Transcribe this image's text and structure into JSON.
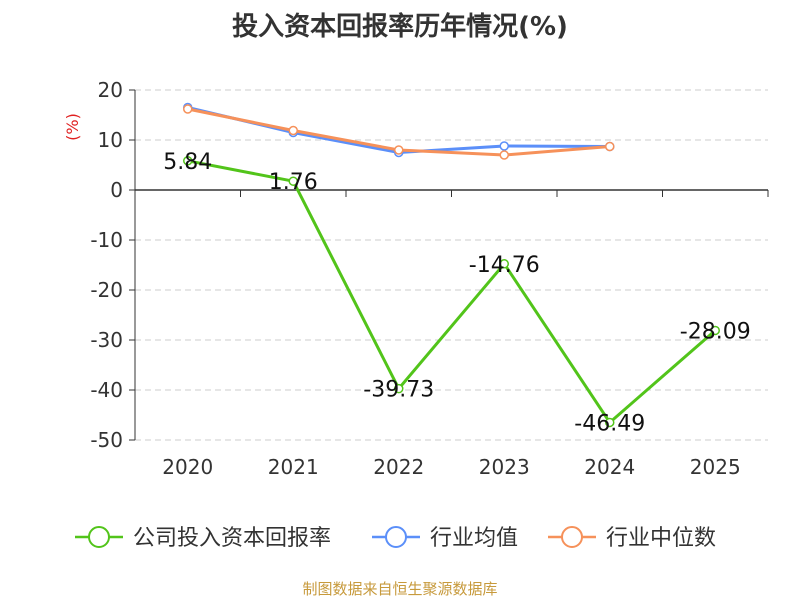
{
  "chart_data": {
    "type": "line",
    "title": "投入资本回报率历年情况(%)",
    "ylabel": "(%)",
    "xlabel": "",
    "categories": [
      "2020",
      "2021",
      "2022",
      "2023",
      "2024",
      "2025"
    ],
    "yticks": [
      "20",
      "10",
      "0",
      "-10",
      "-20",
      "-30",
      "-40",
      "-50"
    ],
    "ylim": [
      -50,
      20
    ],
    "grid": "horizontal-dashed",
    "legend_position": "bottom",
    "series": [
      {
        "name": "公司投入资本回报率",
        "color": "#52c41a",
        "values": [
          5.84,
          1.76,
          -39.73,
          -14.76,
          -46.49,
          -28.09
        ],
        "labels": [
          "5.84",
          "1.76",
          "-39.73",
          "-14.76",
          "-46.49",
          "-28.09"
        ]
      },
      {
        "name": "行业均值",
        "color": "#5b8ff9",
        "values": [
          16.5,
          11.5,
          7.5,
          8.8,
          8.7,
          null
        ]
      },
      {
        "name": "行业中位数",
        "color": "#f6915a",
        "values": [
          16.2,
          11.9,
          8.0,
          7.0,
          8.7,
          null
        ]
      }
    ]
  },
  "source": "制图数据来自恒生聚源数据库"
}
